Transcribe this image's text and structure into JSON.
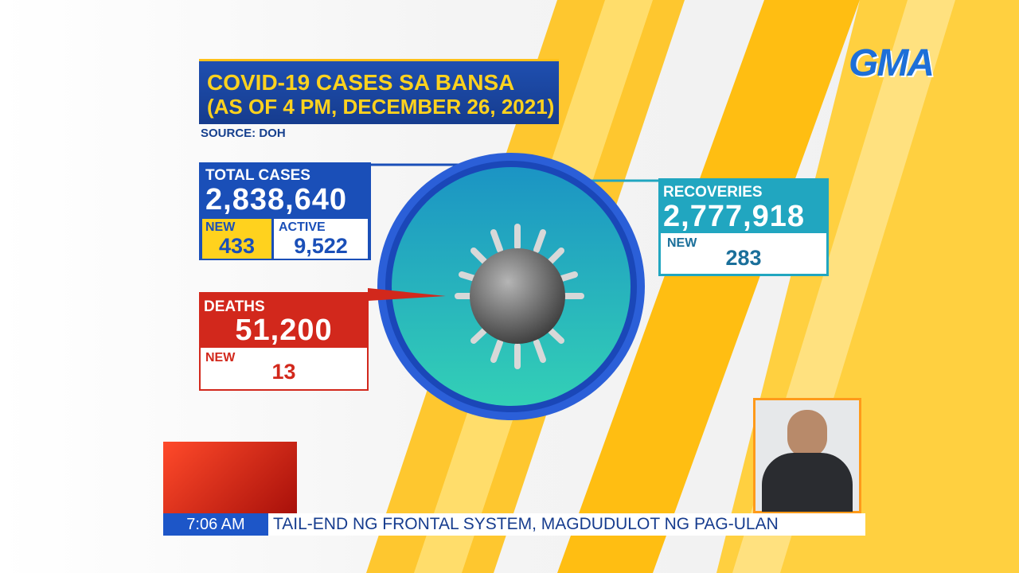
{
  "logo": "GMA",
  "header": {
    "title": "COVID-19 CASES SA BANSA",
    "subtitle": "(AS OF 4 PM, DECEMBER 26, 2021)",
    "source": "SOURCE: DOH"
  },
  "total_cases": {
    "label": "TOTAL CASES",
    "value": "2,838,640",
    "new_label": "NEW",
    "new": "433",
    "active_label": "ACTIVE",
    "active": "9,522"
  },
  "deaths": {
    "label": "DEATHS",
    "value": "51,200",
    "new_label": "NEW",
    "new": "13"
  },
  "recoveries": {
    "label": "RECOVERIES",
    "value": "2,777,918",
    "new_label": "NEW",
    "new": "283"
  },
  "ticker": {
    "time": "7:06 AM",
    "headline": "TAIL-END NG FRONTAL SYSTEM, MAGDUDULOT NG PAG-ULAN"
  }
}
